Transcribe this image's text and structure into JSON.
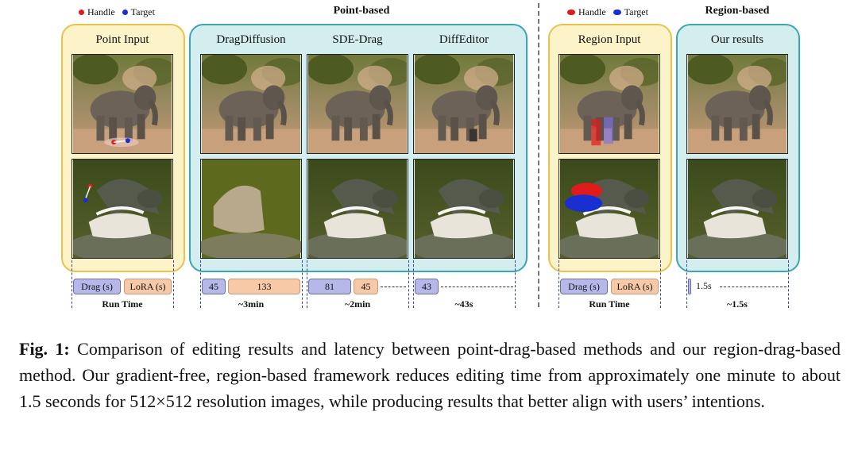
{
  "legend_point": {
    "handle": "Handle",
    "target": "Target"
  },
  "legend_region": {
    "handle": "Handle",
    "target": "Target"
  },
  "titles": {
    "point_based": "Point-based",
    "region_based": "Region-based"
  },
  "columns": {
    "point_input": "Point Input",
    "dragdiffusion": "DragDiffusion",
    "sde_drag": "SDE-Drag",
    "diffeditor": "DiffEditor",
    "region_input": "Region Input",
    "our_results": "Our results"
  },
  "images": {
    "elephant_point_input": "elephant with handle and target points",
    "crocodile_point_input": "crocodile with handle and target points",
    "elephant_dragdiffusion": "elephant edited by DragDiffusion",
    "crocodile_dragdiffusion": "crocodile edited by DragDiffusion",
    "elephant_sde_drag": "elephant edited by SDE-Drag",
    "crocodile_sde_drag": "crocodile edited by SDE-Drag",
    "elephant_diffeditor": "elephant edited by DiffEditor",
    "crocodile_diffeditor": "crocodile edited by DiffEditor",
    "elephant_region_input": "elephant with handle and target regions",
    "crocodile_region_input": "crocodile with handle and target regions",
    "elephant_our_results": "elephant result of our method",
    "crocodile_our_results": "crocodile result of our method"
  },
  "timing": {
    "drag_label": "Drag (s)",
    "lora_label": "LoRA (s)",
    "run_time": "Run Time",
    "dragdiffusion": {
      "drag": "45",
      "lora": "133",
      "total": "~3min"
    },
    "sde_drag": {
      "drag": "81",
      "lora": "45",
      "total": "~2min"
    },
    "diffeditor": {
      "drag": "43",
      "total": "~43s"
    },
    "ours": {
      "value": "1.5s",
      "total": "~1.5s"
    }
  },
  "caption": {
    "label": "Fig. 1:",
    "text": " Comparison of editing results and latency between point-drag-based methods and our region-drag-based method. Our gradient-free, region-based framework reduces editing time from approximately one minute to about 1.5 seconds for 512×512 resolution images, while producing results that better align with users’ intentions."
  },
  "colors": {
    "handle": "#e01b1b",
    "target": "#1a2fd0",
    "yellow_border": "#e9c24e",
    "teal_border": "#3aa6ae"
  }
}
